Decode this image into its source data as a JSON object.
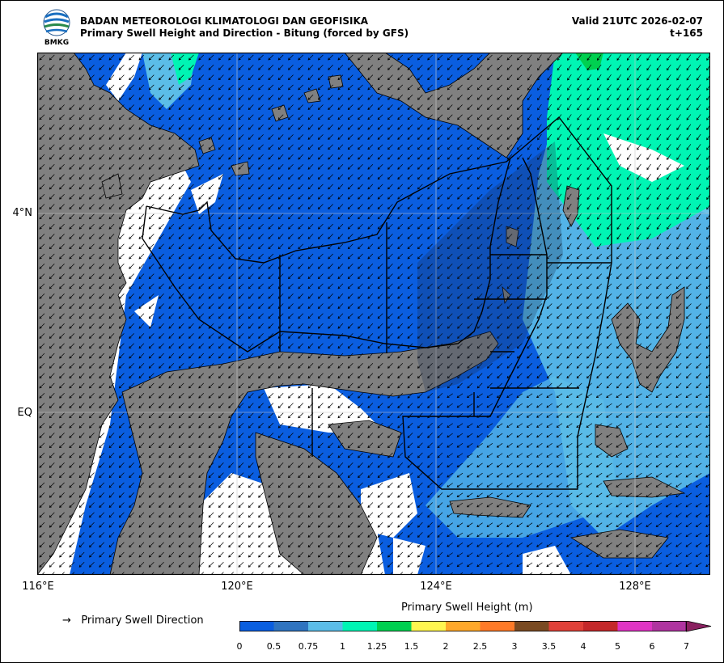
{
  "header": {
    "agency": "BADAN METEOROLOGI KLIMATOLOGI DAN GEOFISIKA",
    "product": "Primary Swell Height and Direction - Bitung (forced by GFS)",
    "valid": "Valid 21UTC 2026-02-07",
    "lead": "t+165",
    "logo_text": "BMKG"
  },
  "axes": {
    "lat_labels": [
      "4°N",
      "EQ"
    ],
    "lon_labels": [
      "116°E",
      "120°E",
      "124°E",
      "128°E"
    ]
  },
  "legend": {
    "arrow_glyph": "→",
    "direction_label": "Primary Swell Direction",
    "colorbar_title": "Primary Swell Height (m)",
    "ticks": [
      "0",
      "0.5",
      "0.75",
      "1",
      "1.25",
      "1.5",
      "2",
      "2.5",
      "3",
      "3.5",
      "4",
      "5",
      "6",
      "7"
    ],
    "colors": [
      "#0a5ee0",
      "#2f74c0",
      "#5bbde8",
      "#00f5b4",
      "#00d050",
      "#fff650",
      "#ffa82a",
      "#ff7a28",
      "#7a4a22",
      "#e04038",
      "#c4282a",
      "#e034c4",
      "#b034a0",
      "#8a2060"
    ]
  },
  "colors": {
    "land": "#808080",
    "sea_low": "#0a5ee0",
    "sea_mid": "#5bbde8",
    "sea_high": "#00f5b4",
    "missing": "#ffffff",
    "boundary": "#000000"
  }
}
